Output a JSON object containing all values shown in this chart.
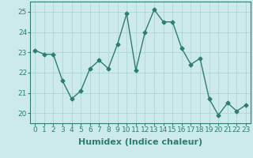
{
  "xlabel": "Humidex (Indice chaleur)",
  "ylabel": "",
  "x": [
    0,
    1,
    2,
    3,
    4,
    5,
    6,
    7,
    8,
    9,
    10,
    11,
    12,
    13,
    14,
    15,
    16,
    17,
    18,
    19,
    20,
    21,
    22,
    23
  ],
  "y": [
    23.1,
    22.9,
    22.9,
    21.6,
    20.7,
    21.1,
    22.2,
    22.6,
    22.2,
    23.4,
    24.9,
    22.1,
    24.0,
    25.1,
    24.5,
    24.5,
    23.2,
    22.4,
    22.7,
    20.7,
    19.9,
    20.5,
    20.1,
    20.4
  ],
  "line_color": "#2e7d6e",
  "marker": "D",
  "marker_size": 2.5,
  "bg_color": "#cceaea",
  "grid_color": "#b0d4d4",
  "ylim": [
    19.5,
    25.5
  ],
  "yticks": [
    20,
    21,
    22,
    23,
    24,
    25
  ],
  "xticks": [
    0,
    1,
    2,
    3,
    4,
    5,
    6,
    7,
    8,
    9,
    10,
    11,
    12,
    13,
    14,
    15,
    16,
    17,
    18,
    19,
    20,
    21,
    22,
    23
  ],
  "tick_fontsize": 6.5,
  "xlabel_fontsize": 8,
  "line_width": 1.0
}
